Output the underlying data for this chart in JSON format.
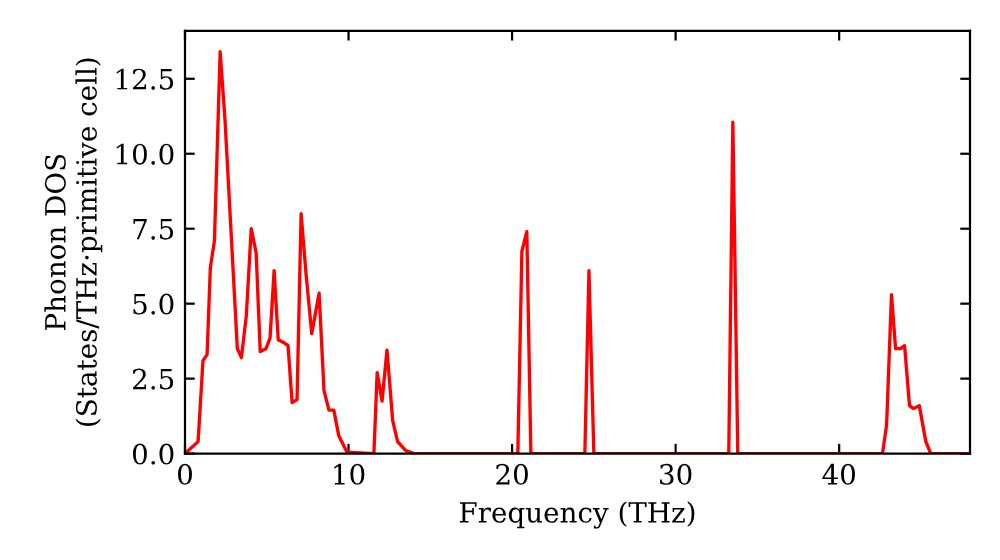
{
  "chart_data": {
    "type": "line",
    "xlabel": "Frequency (THz)",
    "ylabel": "Phonon DOS\n(States/THz·primitive cell)",
    "xlim": [
      0,
      48
    ],
    "ylim": [
      0,
      14.1
    ],
    "xticks": [
      0,
      10,
      20,
      30,
      40
    ],
    "yticks": [
      {
        "value": 0,
        "label": "0.0"
      },
      {
        "value": 2.5,
        "label": "2.5"
      },
      {
        "value": 5,
        "label": "5.0"
      },
      {
        "value": 7.5,
        "label": "7.5"
      },
      {
        "value": 10,
        "label": "10.0"
      },
      {
        "value": 12.5,
        "label": "12.5"
      }
    ],
    "grid": false,
    "legend": false,
    "marker": "none",
    "line_style": "solid",
    "series": [
      {
        "color": "#ff0000",
        "x": [
          0,
          0.8,
          1.1,
          1.35,
          1.55,
          1.8,
          2.15,
          2.45,
          3.2,
          3.45,
          3.75,
          4.05,
          4.35,
          4.6,
          4.95,
          5.2,
          5.45,
          5.7,
          6.05,
          6.3,
          6.55,
          6.85,
          7.1,
          7.4,
          7.75,
          8.2,
          8.5,
          8.8,
          9.1,
          9.4,
          9.9,
          11.55,
          11.75,
          12.05,
          12.35,
          12.7,
          13.0,
          13.5,
          14,
          20.35,
          20.6,
          20.9,
          21.15,
          24.45,
          24.7,
          25.0,
          33.25,
          33.5,
          33.8,
          42.65,
          42.9,
          43.2,
          43.45,
          43.75,
          44.0,
          44.3,
          44.55,
          44.9,
          45.3,
          45.6,
          48
        ],
        "values": [
          0,
          0.4,
          3.1,
          3.3,
          6.2,
          7.1,
          13.4,
          11.1,
          3.5,
          3.2,
          4.6,
          7.5,
          6.7,
          3.4,
          3.5,
          3.85,
          6.1,
          3.8,
          3.7,
          3.6,
          1.7,
          1.8,
          8.0,
          6.0,
          4.0,
          5.35,
          2.1,
          1.45,
          1.45,
          0.6,
          0.05,
          0,
          2.7,
          1.75,
          3.45,
          1.1,
          0.4,
          0.1,
          0,
          0,
          6.75,
          7.4,
          0,
          0,
          6.1,
          0,
          0,
          11.05,
          0,
          0,
          0.95,
          5.3,
          3.5,
          3.5,
          3.6,
          1.6,
          1.5,
          1.6,
          0.4,
          0,
          0
        ]
      }
    ]
  }
}
